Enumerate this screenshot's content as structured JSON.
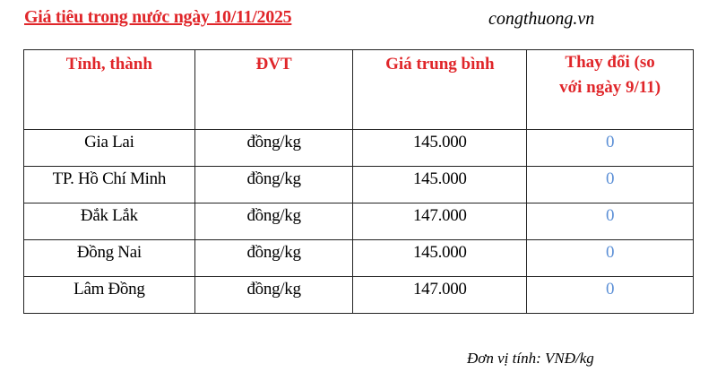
{
  "title": "Giá tiêu trong nước ngày 10/11/2025",
  "source": "congthuong.vn",
  "table": {
    "headers": [
      "Tỉnh, thành",
      "ĐVT",
      "Giá trung bình",
      "Thay đổi (so với ngày 9/11)"
    ],
    "rows": [
      [
        "Gia Lai",
        "đồng/kg",
        "145.000",
        "0"
      ],
      [
        "TP. Hồ Chí Minh",
        "đồng/kg",
        "145.000",
        "0"
      ],
      [
        "Đắk Lắk",
        "đồng/kg",
        "147.000",
        "0"
      ],
      [
        "Đồng Nai",
        "đồng/kg",
        "145.000",
        "0"
      ],
      [
        "Lâm Đồng",
        "đồng/kg",
        "147.000",
        "0"
      ]
    ]
  },
  "footnote": "Đơn vị tính: VNĐ/kg",
  "colors": {
    "title": "#e0262a",
    "change": "#5b8fd6"
  }
}
